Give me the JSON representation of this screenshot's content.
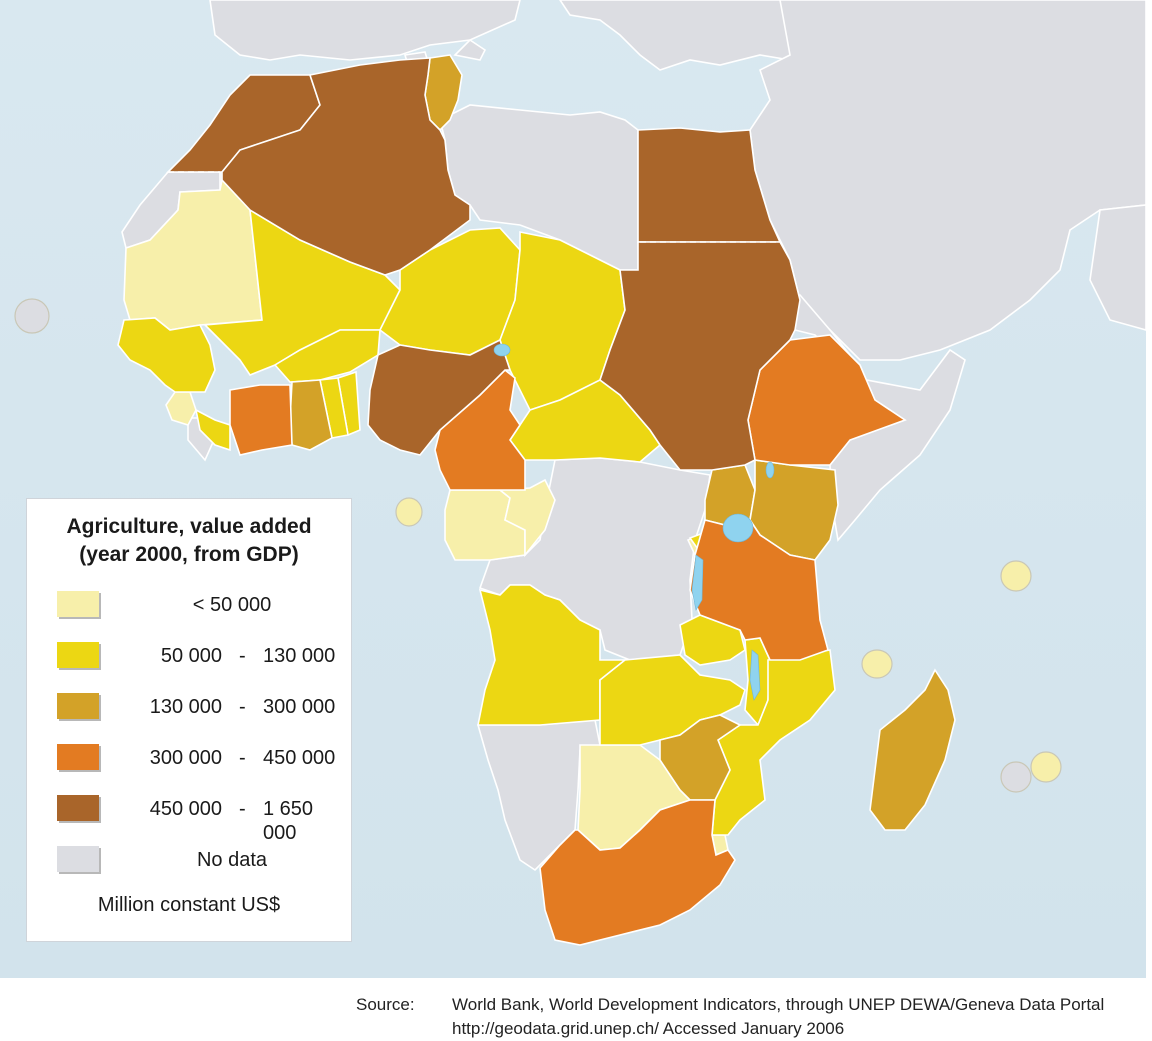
{
  "legend": {
    "title_line1": "Agriculture, value added",
    "title_line2": "(year 2000, from GDP)",
    "units": "Million constant US$",
    "classes": [
      {
        "id": "c1",
        "lo": "< 50 000",
        "hi": null,
        "color": "#f7efaa"
      },
      {
        "id": "c2",
        "lo": "50 000",
        "hi": "130 000",
        "color": "#ecd713"
      },
      {
        "id": "c3",
        "lo": "130 000",
        "hi": "300 000",
        "color": "#d3a228"
      },
      {
        "id": "c4",
        "lo": "300 000",
        "hi": "450 000",
        "color": "#e37b22"
      },
      {
        "id": "c5",
        "lo": "450 000",
        "hi": "1 650 000",
        "color": "#a9652a"
      },
      {
        "id": "nd",
        "lo": "No data",
        "hi": null,
        "color": "#dcdde2"
      }
    ]
  },
  "source": {
    "label": "Source:",
    "text": "World Bank, World Development Indicators, through UNEP DEWA/Geneva Data Portal",
    "url_line": "http://geodata.grid.unep.ch/  Accessed January 2006"
  },
  "colors": {
    "sea": "#d6e6ef",
    "other_land": "#dcdde2",
    "lakes": "#8fd3ef"
  }
}
